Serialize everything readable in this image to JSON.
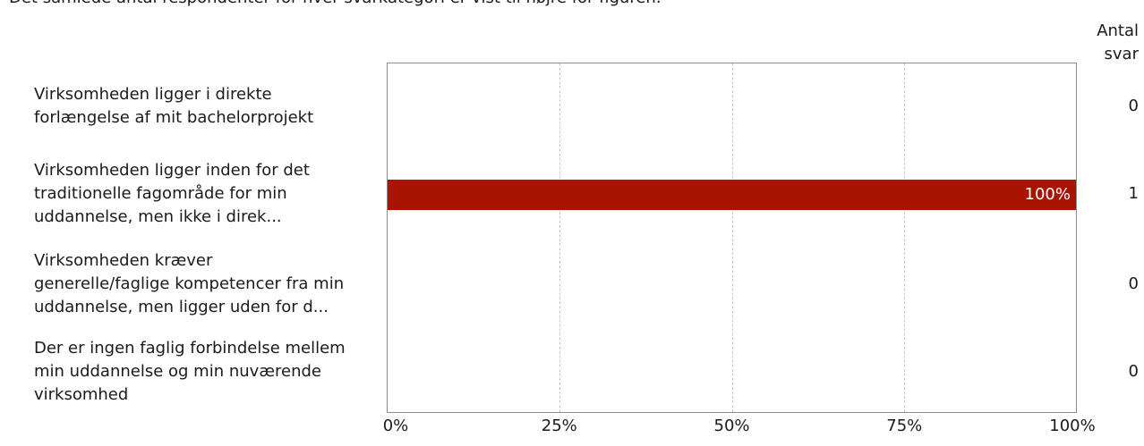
{
  "intro_text": "Det samlede antal respondenter for hver svarkategori er vist til højre for figuren.",
  "count_header": [
    "Antal",
    "svar"
  ],
  "chart_data": {
    "type": "bar",
    "orientation": "horizontal",
    "categories": [
      [
        "Virksomheden ligger i direkte",
        "forlængelse af mit bachelorprojekt"
      ],
      [
        "Virksomheden ligger inden for det",
        "traditionelle fagområde for min",
        "uddannelse, men ikke i direk..."
      ],
      [
        "Virksomheden kræver",
        "generelle/faglige kompetencer fra min",
        "uddannelse, men ligger uden for d..."
      ],
      [
        "Der er ingen faglig forbindelse mellem",
        "min uddannelse og min nuværende",
        "virksomhed"
      ]
    ],
    "values": [
      0,
      100,
      0,
      0
    ],
    "value_labels": [
      "",
      "100%",
      "",
      ""
    ],
    "counts": [
      "0",
      "1",
      "0",
      "0"
    ],
    "xlim": [
      0,
      100
    ],
    "x_ticks": [
      "0%",
      "25%",
      "50%",
      "75%",
      "100%"
    ],
    "grid": true,
    "bar_color": "#a71400"
  }
}
